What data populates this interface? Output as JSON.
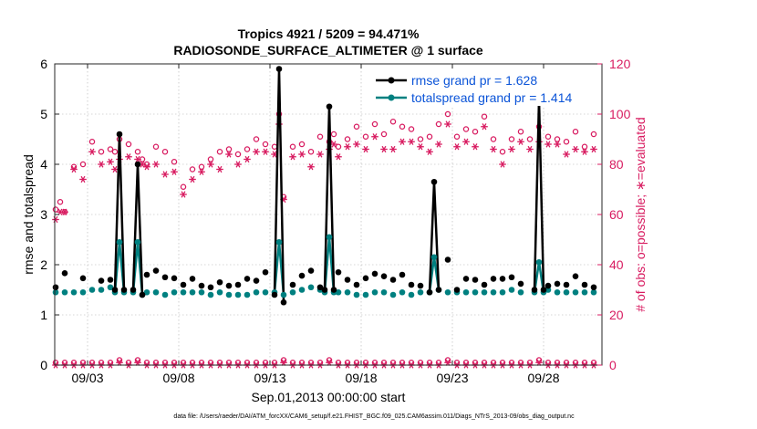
{
  "chart_data": {
    "type": "line",
    "title_line1": "Tropics 4921 / 5209 = 94.471%",
    "title_line2": "RADIOSONDE_SURFACE_ALTIMETER @ 1 surface",
    "ylabel_left": "rmse and totalspread",
    "ylabel_right": "# of obs: o=possible; ∗=evaluated",
    "xlabel": "Sep.01,2013 00:00:00 start",
    "footer": "data file: /Users/raeder/DAI/ATM_forcXX/CAM6_setup/f.e21.FHIST_BGC.f09_025.CAM6assim.011/Diags_NTrS_2013-09/obs_diag_output.nc",
    "xlim": [
      1.2,
      31.2
    ],
    "ylim_left": [
      0,
      6
    ],
    "ylim_right": [
      0,
      120
    ],
    "x_ticks": [
      3,
      8,
      13,
      18,
      23,
      28
    ],
    "x_tick_labels": [
      "09/03",
      "09/08",
      "09/13",
      "09/18",
      "09/23",
      "09/28"
    ],
    "y_left_ticks": [
      0,
      1,
      2,
      3,
      4,
      5,
      6
    ],
    "y_right_ticks": [
      0,
      20,
      40,
      60,
      80,
      100,
      120
    ],
    "legend": {
      "rmse_label": "rmse grand pr = 1.628",
      "spread_label": "totalspread grand pr = 1.414"
    },
    "colors": {
      "rmse": "#000000",
      "spread": "#008080",
      "obs": "#d81b60",
      "legend_text": "#0b54d8"
    },
    "rmse_line": [
      [
        4.5,
        1.5
      ],
      [
        4.75,
        4.6
      ],
      [
        5.0,
        1.5
      ],
      [
        5.5,
        1.5
      ],
      [
        5.75,
        4.0
      ],
      [
        6.0,
        1.4
      ],
      [
        13.25,
        1.4
      ],
      [
        13.5,
        5.9
      ],
      [
        13.75,
        1.25
      ],
      [
        16.0,
        1.5
      ],
      [
        16.25,
        5.15
      ],
      [
        16.5,
        1.5
      ],
      [
        21.75,
        1.45
      ],
      [
        22.0,
        3.65
      ],
      [
        22.25,
        1.5
      ],
      [
        27.5,
        1.5
      ],
      [
        27.75,
        5.3
      ],
      [
        28.0,
        1.5
      ]
    ],
    "spread_line": [
      [
        4.5,
        1.45
      ],
      [
        4.75,
        2.45
      ],
      [
        5.0,
        1.45
      ],
      [
        5.5,
        1.45
      ],
      [
        5.75,
        2.45
      ],
      [
        6.0,
        1.4
      ],
      [
        13.25,
        1.45
      ],
      [
        13.5,
        2.45
      ],
      [
        13.75,
        1.4
      ],
      [
        16.0,
        1.45
      ],
      [
        16.25,
        2.55
      ],
      [
        16.5,
        1.45
      ],
      [
        21.75,
        1.45
      ],
      [
        22.0,
        2.15
      ],
      [
        22.25,
        1.5
      ],
      [
        27.5,
        1.45
      ],
      [
        27.75,
        2.05
      ],
      [
        28.0,
        1.45
      ]
    ],
    "rmse_points": [
      [
        1.25,
        1.55
      ],
      [
        1.75,
        1.83
      ],
      [
        2.75,
        1.73
      ],
      [
        3.75,
        1.68
      ],
      [
        4.25,
        1.7
      ],
      [
        6.25,
        1.8
      ],
      [
        6.75,
        1.88
      ],
      [
        7.25,
        1.75
      ],
      [
        7.75,
        1.73
      ],
      [
        8.25,
        1.6
      ],
      [
        8.75,
        1.72
      ],
      [
        9.25,
        1.58
      ],
      [
        9.75,
        1.55
      ],
      [
        10.25,
        1.65
      ],
      [
        10.75,
        1.58
      ],
      [
        11.25,
        1.6
      ],
      [
        11.75,
        1.72
      ],
      [
        12.25,
        1.68
      ],
      [
        12.75,
        1.85
      ],
      [
        14.25,
        1.6
      ],
      [
        14.75,
        1.78
      ],
      [
        15.25,
        1.88
      ],
      [
        15.75,
        1.55
      ],
      [
        16.75,
        1.85
      ],
      [
        17.25,
        1.7
      ],
      [
        17.75,
        1.6
      ],
      [
        18.25,
        1.73
      ],
      [
        18.75,
        1.82
      ],
      [
        19.25,
        1.77
      ],
      [
        19.75,
        1.7
      ],
      [
        20.25,
        1.8
      ],
      [
        20.75,
        1.6
      ],
      [
        21.25,
        1.58
      ],
      [
        22.75,
        2.1
      ],
      [
        23.25,
        1.5
      ],
      [
        23.75,
        1.72
      ],
      [
        24.25,
        1.7
      ],
      [
        24.75,
        1.6
      ],
      [
        25.25,
        1.72
      ],
      [
        25.75,
        1.72
      ],
      [
        26.25,
        1.75
      ],
      [
        26.75,
        1.62
      ],
      [
        28.25,
        1.58
      ],
      [
        28.75,
        1.62
      ],
      [
        29.25,
        1.6
      ],
      [
        29.75,
        1.77
      ],
      [
        30.25,
        1.6
      ],
      [
        30.75,
        1.55
      ]
    ],
    "spread_points": [
      [
        1.25,
        1.45
      ],
      [
        1.75,
        1.45
      ],
      [
        2.25,
        1.45
      ],
      [
        2.75,
        1.45
      ],
      [
        3.25,
        1.5
      ],
      [
        3.75,
        1.5
      ],
      [
        4.25,
        1.55
      ],
      [
        6.25,
        1.45
      ],
      [
        6.75,
        1.45
      ],
      [
        7.25,
        1.4
      ],
      [
        7.75,
        1.45
      ],
      [
        8.25,
        1.45
      ],
      [
        8.75,
        1.45
      ],
      [
        9.25,
        1.45
      ],
      [
        9.75,
        1.4
      ],
      [
        10.25,
        1.45
      ],
      [
        10.75,
        1.4
      ],
      [
        11.25,
        1.4
      ],
      [
        11.75,
        1.4
      ],
      [
        12.25,
        1.45
      ],
      [
        12.75,
        1.45
      ],
      [
        14.25,
        1.45
      ],
      [
        14.75,
        1.5
      ],
      [
        15.25,
        1.55
      ],
      [
        15.75,
        1.5
      ],
      [
        16.75,
        1.45
      ],
      [
        17.25,
        1.45
      ],
      [
        17.75,
        1.4
      ],
      [
        18.25,
        1.4
      ],
      [
        18.75,
        1.45
      ],
      [
        19.25,
        1.45
      ],
      [
        19.75,
        1.4
      ],
      [
        20.25,
        1.45
      ],
      [
        20.75,
        1.4
      ],
      [
        21.25,
        1.45
      ],
      [
        22.75,
        1.45
      ],
      [
        23.25,
        1.45
      ],
      [
        23.75,
        1.45
      ],
      [
        24.25,
        1.45
      ],
      [
        24.75,
        1.45
      ],
      [
        25.25,
        1.45
      ],
      [
        25.75,
        1.45
      ],
      [
        26.25,
        1.5
      ],
      [
        26.75,
        1.45
      ],
      [
        28.25,
        1.5
      ],
      [
        28.75,
        1.45
      ],
      [
        29.25,
        1.45
      ],
      [
        29.75,
        1.45
      ],
      [
        30.25,
        1.45
      ],
      [
        30.75,
        1.45
      ]
    ],
    "possible_points": [
      [
        1.25,
        62
      ],
      [
        1.5,
        65
      ],
      [
        1.75,
        61
      ],
      [
        2.25,
        79
      ],
      [
        2.75,
        80
      ],
      [
        3.25,
        89
      ],
      [
        3.75,
        85
      ],
      [
        4.25,
        86
      ],
      [
        4.5,
        85
      ],
      [
        4.75,
        90
      ],
      [
        5.25,
        88
      ],
      [
        5.75,
        85
      ],
      [
        6.0,
        82
      ],
      [
        6.25,
        80
      ],
      [
        6.75,
        87
      ],
      [
        7.25,
        85
      ],
      [
        7.75,
        81
      ],
      [
        8.25,
        71
      ],
      [
        8.75,
        78
      ],
      [
        9.25,
        79
      ],
      [
        9.75,
        82
      ],
      [
        10.25,
        85
      ],
      [
        10.75,
        86
      ],
      [
        11.25,
        84
      ],
      [
        11.75,
        86
      ],
      [
        12.25,
        90
      ],
      [
        12.75,
        88
      ],
      [
        13.25,
        87
      ],
      [
        13.5,
        100
      ],
      [
        13.75,
        67
      ],
      [
        14.25,
        87
      ],
      [
        14.75,
        88
      ],
      [
        15.25,
        85
      ],
      [
        15.75,
        91
      ],
      [
        16.25,
        89
      ],
      [
        16.5,
        92
      ],
      [
        16.75,
        87
      ],
      [
        17.25,
        90
      ],
      [
        17.75,
        95
      ],
      [
        18.25,
        91
      ],
      [
        18.75,
        96
      ],
      [
        19.25,
        92
      ],
      [
        19.75,
        97
      ],
      [
        20.25,
        95
      ],
      [
        20.75,
        94
      ],
      [
        21.25,
        90
      ],
      [
        21.75,
        91
      ],
      [
        22.25,
        96
      ],
      [
        22.75,
        100
      ],
      [
        23.25,
        91
      ],
      [
        23.75,
        94
      ],
      [
        24.25,
        93
      ],
      [
        24.75,
        99
      ],
      [
        25.25,
        90
      ],
      [
        25.75,
        85
      ],
      [
        26.25,
        90
      ],
      [
        26.75,
        93
      ],
      [
        27.25,
        90
      ],
      [
        27.75,
        95
      ],
      [
        28.25,
        91
      ],
      [
        28.75,
        90
      ],
      [
        29.25,
        89
      ],
      [
        29.75,
        93
      ],
      [
        30.25,
        87
      ],
      [
        30.75,
        92
      ]
    ],
    "evaluated_points": [
      [
        1.25,
        58
      ],
      [
        1.5,
        61
      ],
      [
        1.75,
        61
      ],
      [
        2.25,
        78
      ],
      [
        2.75,
        74
      ],
      [
        3.25,
        85
      ],
      [
        3.75,
        80
      ],
      [
        4.25,
        81
      ],
      [
        4.5,
        78
      ],
      [
        4.75,
        82
      ],
      [
        5.25,
        83
      ],
      [
        5.75,
        82
      ],
      [
        6.0,
        80
      ],
      [
        6.25,
        79
      ],
      [
        6.75,
        80
      ],
      [
        7.25,
        76
      ],
      [
        7.75,
        77
      ],
      [
        8.25,
        68
      ],
      [
        8.75,
        74
      ],
      [
        9.25,
        77
      ],
      [
        9.75,
        80
      ],
      [
        10.25,
        78
      ],
      [
        10.75,
        84
      ],
      [
        11.25,
        80
      ],
      [
        11.75,
        82
      ],
      [
        12.25,
        85
      ],
      [
        12.75,
        85
      ],
      [
        13.25,
        84
      ],
      [
        13.5,
        96
      ],
      [
        13.75,
        66
      ],
      [
        14.25,
        83
      ],
      [
        14.75,
        84
      ],
      [
        15.25,
        79
      ],
      [
        15.75,
        84
      ],
      [
        16.25,
        86
      ],
      [
        16.5,
        88
      ],
      [
        16.75,
        83
      ],
      [
        17.25,
        87
      ],
      [
        17.75,
        88
      ],
      [
        18.25,
        86
      ],
      [
        18.75,
        91
      ],
      [
        19.25,
        86
      ],
      [
        19.75,
        86
      ],
      [
        20.25,
        89
      ],
      [
        20.75,
        89
      ],
      [
        21.25,
        87
      ],
      [
        21.75,
        85
      ],
      [
        22.25,
        88
      ],
      [
        22.75,
        96
      ],
      [
        23.25,
        87
      ],
      [
        23.75,
        89
      ],
      [
        24.25,
        87
      ],
      [
        24.75,
        95
      ],
      [
        25.25,
        86
      ],
      [
        25.75,
        80
      ],
      [
        26.25,
        86
      ],
      [
        26.75,
        89
      ],
      [
        27.25,
        86
      ],
      [
        27.75,
        89
      ],
      [
        28.25,
        88
      ],
      [
        28.75,
        88
      ],
      [
        29.25,
        84
      ],
      [
        29.75,
        86
      ],
      [
        30.25,
        85
      ],
      [
        30.75,
        86
      ]
    ],
    "bottom_possible": [
      [
        1.25,
        1
      ],
      [
        1.75,
        1
      ],
      [
        2.25,
        1
      ],
      [
        2.75,
        1
      ],
      [
        3.25,
        1
      ],
      [
        3.75,
        1
      ],
      [
        4.25,
        1
      ],
      [
        4.75,
        2
      ],
      [
        5.25,
        1
      ],
      [
        5.75,
        2
      ],
      [
        6.25,
        1
      ],
      [
        6.75,
        1
      ],
      [
        7.25,
        1
      ],
      [
        7.75,
        1
      ],
      [
        8.25,
        1
      ],
      [
        8.75,
        1
      ],
      [
        9.25,
        1
      ],
      [
        9.75,
        1
      ],
      [
        10.25,
        1
      ],
      [
        10.75,
        1
      ],
      [
        11.25,
        1
      ],
      [
        11.75,
        1
      ],
      [
        12.25,
        1
      ],
      [
        12.75,
        1
      ],
      [
        13.25,
        1
      ],
      [
        13.75,
        2
      ],
      [
        14.25,
        1
      ],
      [
        14.75,
        1
      ],
      [
        15.25,
        1
      ],
      [
        15.75,
        1
      ],
      [
        16.25,
        2
      ],
      [
        16.75,
        1
      ],
      [
        17.25,
        1
      ],
      [
        17.75,
        1
      ],
      [
        18.25,
        1
      ],
      [
        18.75,
        1
      ],
      [
        19.25,
        1
      ],
      [
        19.75,
        1
      ],
      [
        20.25,
        1
      ],
      [
        20.75,
        1
      ],
      [
        21.25,
        1
      ],
      [
        21.75,
        1
      ],
      [
        22.25,
        1
      ],
      [
        22.75,
        2
      ],
      [
        23.25,
        1
      ],
      [
        23.75,
        1
      ],
      [
        24.25,
        1
      ],
      [
        24.75,
        1
      ],
      [
        25.25,
        1
      ],
      [
        25.75,
        1
      ],
      [
        26.25,
        1
      ],
      [
        26.75,
        1
      ],
      [
        27.25,
        1
      ],
      [
        27.75,
        2
      ],
      [
        28.25,
        1
      ],
      [
        28.75,
        1
      ],
      [
        29.25,
        1
      ],
      [
        29.75,
        1
      ],
      [
        30.25,
        1
      ],
      [
        30.75,
        1
      ]
    ],
    "bottom_evaluated": [
      [
        1.25,
        0
      ],
      [
        1.75,
        0
      ],
      [
        2.25,
        0
      ],
      [
        2.75,
        0
      ],
      [
        3.25,
        0
      ],
      [
        3.75,
        0
      ],
      [
        4.25,
        0
      ],
      [
        4.75,
        1
      ],
      [
        5.25,
        0
      ],
      [
        5.75,
        1
      ],
      [
        6.25,
        0
      ],
      [
        6.75,
        0
      ],
      [
        7.25,
        0
      ],
      [
        7.75,
        0
      ],
      [
        8.25,
        0
      ],
      [
        8.75,
        0
      ],
      [
        9.25,
        0
      ],
      [
        9.75,
        0
      ],
      [
        10.25,
        0
      ],
      [
        10.75,
        0
      ],
      [
        11.25,
        0
      ],
      [
        11.75,
        0
      ],
      [
        12.25,
        0
      ],
      [
        12.75,
        0
      ],
      [
        13.25,
        0
      ],
      [
        13.75,
        1
      ],
      [
        14.25,
        0
      ],
      [
        14.75,
        0
      ],
      [
        15.25,
        0
      ],
      [
        15.75,
        0
      ],
      [
        16.25,
        1
      ],
      [
        16.75,
        0
      ],
      [
        17.25,
        0
      ],
      [
        17.75,
        0
      ],
      [
        18.25,
        0
      ],
      [
        18.75,
        0
      ],
      [
        19.25,
        0
      ],
      [
        19.75,
        0
      ],
      [
        20.25,
        0
      ],
      [
        20.75,
        0
      ],
      [
        21.25,
        0
      ],
      [
        21.75,
        0
      ],
      [
        22.25,
        0
      ],
      [
        22.75,
        1
      ],
      [
        23.25,
        0
      ],
      [
        23.75,
        0
      ],
      [
        24.25,
        0
      ],
      [
        24.75,
        0
      ],
      [
        25.25,
        0
      ],
      [
        25.75,
        0
      ],
      [
        26.25,
        0
      ],
      [
        26.75,
        0
      ],
      [
        27.25,
        0
      ],
      [
        27.75,
        1
      ],
      [
        28.25,
        0
      ],
      [
        28.75,
        0
      ],
      [
        29.25,
        0
      ],
      [
        29.75,
        0
      ],
      [
        30.25,
        0
      ],
      [
        30.75,
        0
      ]
    ]
  }
}
